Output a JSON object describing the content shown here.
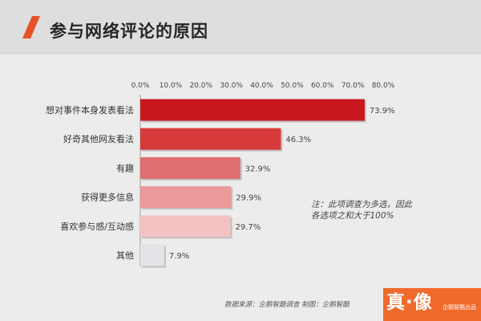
{
  "title": "参与网络评论的原因",
  "note_line1": "注：此项调查为多选，因此",
  "note_line2": "各选项之和大于100%",
  "source": "数据来源：企鹅智酷调查  制图：企鹅智酷",
  "logo": {
    "main": "真·像",
    "sub": "企鹅智酷出品"
  },
  "colors": {
    "accent": "#e8502a",
    "bars": [
      "#c8171e",
      "#d63a3a",
      "#e06e6e",
      "#eb9a9a",
      "#f3c3c3",
      "#e3e3e8"
    ]
  },
  "chart_data": {
    "type": "bar",
    "orientation": "horizontal",
    "categories": [
      "想对事件本身发表看法",
      "好奇其他网友看法",
      "有趣",
      "获得更多信息",
      "喜欢参与感/互动感",
      "其他"
    ],
    "values": [
      73.9,
      46.3,
      32.9,
      29.9,
      29.7,
      7.9
    ],
    "value_labels": [
      "73.9%",
      "46.3%",
      "32.9%",
      "29.9%",
      "29.7%",
      "7.9%"
    ],
    "xlim": [
      0,
      80
    ],
    "xticks": [
      0,
      10,
      20,
      30,
      40,
      50,
      60,
      70,
      80
    ],
    "xtick_labels": [
      "0.0%",
      "10.0%",
      "20.0%",
      "30.0%",
      "40.0%",
      "50.0%",
      "60.0%",
      "70.0%",
      "80.0%"
    ],
    "grid": false,
    "legend": "none",
    "title": "参与网络评论的原因"
  }
}
